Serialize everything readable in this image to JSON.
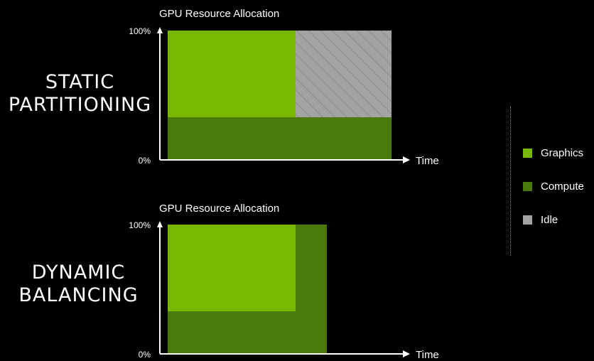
{
  "colors": {
    "graphics": "#76b900",
    "compute": "#4a7a0a",
    "idle": "#a3a3a3",
    "axis": "#ffffff"
  },
  "panels": {
    "static": {
      "side_title_line1": "STATIC",
      "side_title_line2": "PARTITIONING",
      "chart_title": "GPU Resource Allocation",
      "y_top_label": "100%",
      "y_bottom_label": "0%",
      "x_label": "Time"
    },
    "dynamic": {
      "side_title_line1": "DYNAMIC",
      "side_title_line2": "BALANCING",
      "chart_title": "GPU Resource Allocation",
      "y_top_label": "100%",
      "y_bottom_label": "0%",
      "x_label": "Time"
    }
  },
  "legend": {
    "items": [
      {
        "label": "Graphics",
        "color_key": "graphics"
      },
      {
        "label": "Compute",
        "color_key": "compute"
      },
      {
        "label": "Idle",
        "color_key": "idle"
      }
    ]
  }
}
